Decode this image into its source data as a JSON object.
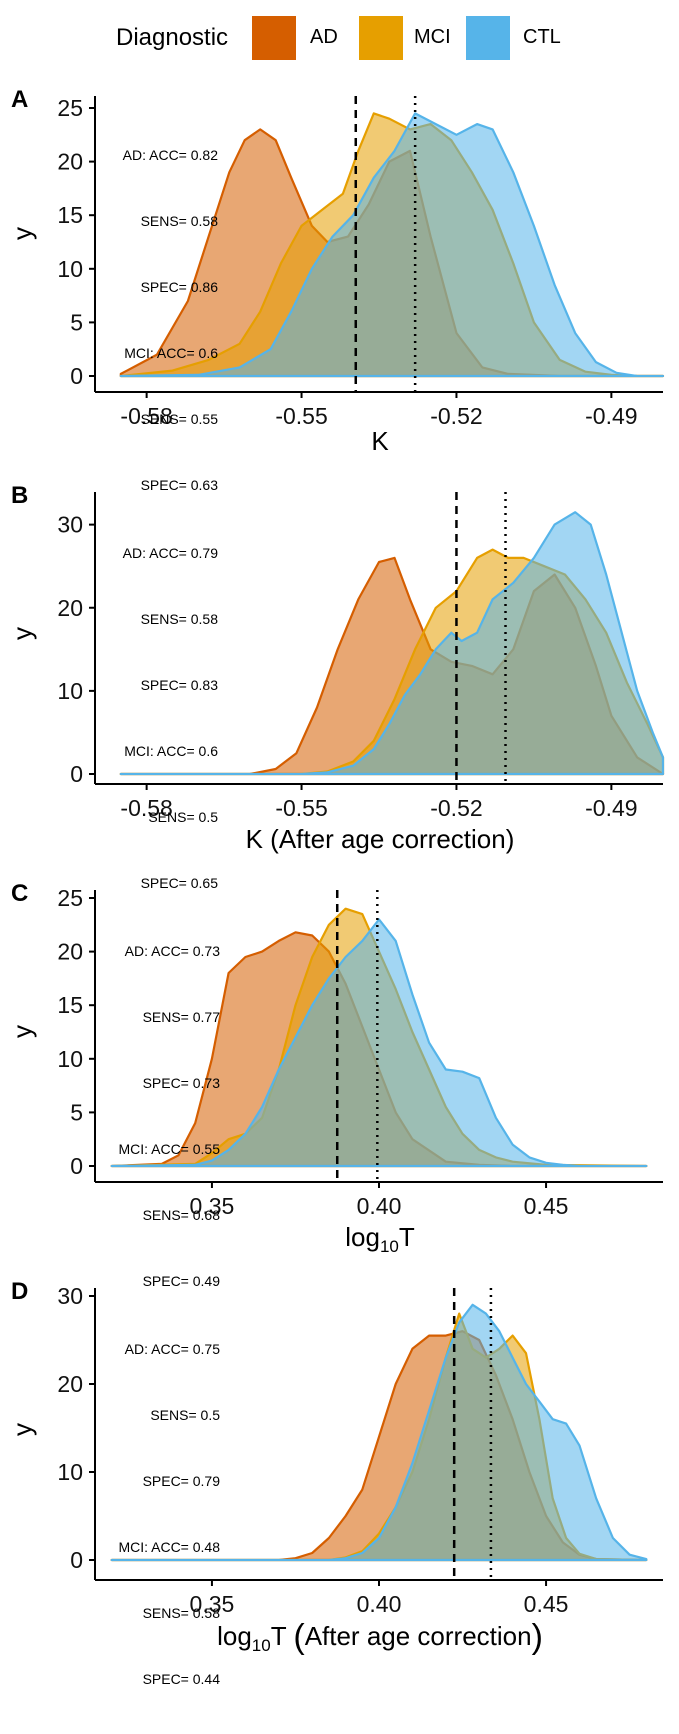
{
  "legend": {
    "title": "Diagnostic",
    "items": [
      {
        "label": "AD",
        "color": "#D55E00"
      },
      {
        "label": "MCI",
        "color": "#E69F00"
      },
      {
        "label": "CTL",
        "color": "#56B4E9"
      }
    ]
  },
  "chart_data": [
    {
      "panel": "A",
      "type": "area",
      "xlabel": "K",
      "ylabel": "y",
      "xlim": [
        -0.59,
        -0.48
      ],
      "ylim": [
        0,
        25
      ],
      "x_ticks": [
        "-0.58",
        "-0.55",
        "-0.52",
        "-0.49"
      ],
      "y_ticks": [
        "0",
        "5",
        "10",
        "15",
        "20",
        "25"
      ],
      "stats": [
        "AD: ACC= 0.82",
        "SENS= 0.58",
        "SPEC= 0.86",
        "MCI: ACC= 0.6",
        "SENS= 0.55",
        "SPEC= 0.63"
      ],
      "thresholds": {
        "dashed": -0.5395,
        "dotted": -0.528
      },
      "series": [
        {
          "name": "AD",
          "x": [
            -0.585,
            -0.578,
            -0.572,
            -0.568,
            -0.564,
            -0.561,
            -0.558,
            -0.555,
            -0.552,
            -0.548,
            -0.545,
            -0.541,
            -0.537,
            -0.533,
            -0.529,
            -0.525,
            -0.52,
            -0.515,
            -0.51,
            -0.5,
            -0.49,
            -0.48
          ],
          "y": [
            0.2,
            2,
            7,
            13,
            19,
            22,
            23,
            22,
            18.5,
            14,
            12.5,
            13,
            16,
            20,
            21,
            13,
            4,
            0.8,
            0.2,
            0,
            0,
            0
          ]
        },
        {
          "name": "MCI",
          "x": [
            -0.585,
            -0.575,
            -0.568,
            -0.562,
            -0.558,
            -0.554,
            -0.55,
            -0.546,
            -0.542,
            -0.539,
            -0.536,
            -0.533,
            -0.529,
            -0.525,
            -0.521,
            -0.517,
            -0.513,
            -0.509,
            -0.505,
            -0.5,
            -0.495,
            -0.49,
            -0.485,
            -0.48
          ],
          "y": [
            0,
            0.5,
            1.5,
            3,
            6,
            10.5,
            14,
            15.5,
            17,
            21,
            24.5,
            24,
            23,
            23.5,
            22,
            19,
            15.5,
            10.5,
            5,
            1.5,
            0.4,
            0.1,
            0,
            0
          ]
        },
        {
          "name": "CTL",
          "x": [
            -0.585,
            -0.57,
            -0.562,
            -0.556,
            -0.552,
            -0.548,
            -0.544,
            -0.54,
            -0.536,
            -0.532,
            -0.528,
            -0.524,
            -0.52,
            -0.516,
            -0.513,
            -0.509,
            -0.505,
            -0.501,
            -0.497,
            -0.493,
            -0.489,
            -0.485,
            -0.48
          ],
          "y": [
            0,
            0.1,
            0.8,
            2.5,
            6,
            10,
            13,
            15,
            18.5,
            21,
            24.5,
            23.5,
            22.5,
            23.5,
            23,
            19,
            14,
            8.5,
            4,
            1.3,
            0.3,
            0,
            0
          ]
        }
      ]
    },
    {
      "panel": "B",
      "type": "area",
      "xlabel": "K (After age correction)",
      "ylabel": "y",
      "xlim": [
        -0.59,
        -0.48
      ],
      "ylim": [
        0,
        32
      ],
      "x_ticks": [
        "-0.58",
        "-0.55",
        "-0.52",
        "-0.49"
      ],
      "y_ticks": [
        "0",
        "10",
        "20",
        "30"
      ],
      "stats": [
        "AD: ACC= 0.79",
        "SENS= 0.58",
        "SPEC= 0.83",
        "MCI: ACC= 0.6",
        "SENS= 0.5",
        "SPEC= 0.65"
      ],
      "thresholds": {
        "dashed": -0.52,
        "dotted": -0.5105
      },
      "series": [
        {
          "name": "AD",
          "x": [
            -0.585,
            -0.56,
            -0.555,
            -0.551,
            -0.547,
            -0.543,
            -0.539,
            -0.535,
            -0.532,
            -0.529,
            -0.525,
            -0.521,
            -0.517,
            -0.513,
            -0.509,
            -0.505,
            -0.501,
            -0.497,
            -0.493,
            -0.49,
            -0.485,
            -0.48
          ],
          "y": [
            0,
            0,
            0.6,
            2.5,
            8,
            15,
            21,
            25.5,
            26,
            21,
            15,
            13.5,
            13,
            12,
            15,
            22,
            24,
            20,
            13,
            7,
            2,
            0
          ]
        },
        {
          "name": "MCI",
          "x": [
            -0.585,
            -0.55,
            -0.545,
            -0.54,
            -0.536,
            -0.532,
            -0.528,
            -0.524,
            -0.52,
            -0.516,
            -0.513,
            -0.51,
            -0.507,
            -0.503,
            -0.499,
            -0.495,
            -0.491,
            -0.487,
            -0.483,
            -0.48
          ],
          "y": [
            0,
            0,
            0.3,
            1.5,
            4,
            9,
            15,
            20,
            22,
            26,
            27,
            26,
            26,
            25,
            24,
            21,
            17,
            11,
            6,
            2
          ]
        },
        {
          "name": "CTL",
          "x": [
            -0.585,
            -0.55,
            -0.545,
            -0.54,
            -0.536,
            -0.533,
            -0.53,
            -0.527,
            -0.524,
            -0.521,
            -0.519,
            -0.516,
            -0.513,
            -0.509,
            -0.505,
            -0.501,
            -0.497,
            -0.494,
            -0.491,
            -0.488,
            -0.485,
            -0.482,
            -0.48
          ],
          "y": [
            0,
            0,
            0.2,
            1,
            3,
            6,
            9.5,
            12,
            15,
            17,
            16,
            17,
            21,
            23,
            26,
            30,
            31.5,
            30,
            24,
            17,
            10,
            5,
            2
          ]
        }
      ]
    },
    {
      "panel": "C",
      "type": "area",
      "xlabel": "log10T",
      "ylabel": "y",
      "xlim": [
        0.315,
        0.485
      ],
      "ylim": [
        0,
        25
      ],
      "x_ticks": [
        "0.35",
        "0.40",
        "0.45"
      ],
      "y_ticks": [
        "0",
        "5",
        "10",
        "15",
        "20",
        "25"
      ],
      "stats": [
        "AD: ACC= 0.73",
        "SENS= 0.77",
        "SPEC= 0.73",
        "MCI: ACC= 0.55",
        "SENS= 0.68",
        "SPEC= 0.49"
      ],
      "thresholds": {
        "dashed": 0.3875,
        "dotted": 0.3995
      },
      "series": [
        {
          "name": "AD",
          "x": [
            0.32,
            0.335,
            0.34,
            0.345,
            0.35,
            0.355,
            0.36,
            0.365,
            0.37,
            0.375,
            0.38,
            0.385,
            0.39,
            0.395,
            0.4,
            0.405,
            0.41,
            0.42,
            0.43,
            0.44,
            0.46,
            0.48
          ],
          "y": [
            0,
            0.2,
            1,
            4,
            10,
            18,
            19.5,
            20,
            21,
            21.8,
            21.5,
            20,
            17,
            13,
            9,
            5,
            2.5,
            0.4,
            0.1,
            0,
            0,
            0
          ]
        },
        {
          "name": "MCI",
          "x": [
            0.32,
            0.345,
            0.35,
            0.355,
            0.36,
            0.365,
            0.37,
            0.375,
            0.38,
            0.385,
            0.39,
            0.395,
            0.4,
            0.405,
            0.41,
            0.415,
            0.42,
            0.425,
            0.43,
            0.435,
            0.44,
            0.45,
            0.48
          ],
          "y": [
            0,
            0.2,
            1.2,
            2.5,
            3,
            4.5,
            9,
            15,
            19.5,
            22.5,
            24,
            23.5,
            20,
            16.5,
            12.5,
            9,
            5.5,
            3,
            1.5,
            0.8,
            0.4,
            0.1,
            0
          ]
        },
        {
          "name": "CTL",
          "x": [
            0.32,
            0.345,
            0.35,
            0.355,
            0.36,
            0.365,
            0.37,
            0.375,
            0.38,
            0.385,
            0.39,
            0.395,
            0.4,
            0.405,
            0.41,
            0.415,
            0.42,
            0.425,
            0.43,
            0.435,
            0.44,
            0.445,
            0.45,
            0.455,
            0.46,
            0.48
          ],
          "y": [
            0,
            0.1,
            0.5,
            1.5,
            3,
            5.5,
            9,
            12,
            15,
            17.5,
            19.5,
            21,
            23,
            21,
            16,
            11.5,
            9,
            8.8,
            8.2,
            4.5,
            2,
            0.8,
            0.3,
            0.1,
            0,
            0
          ]
        }
      ]
    },
    {
      "panel": "D",
      "type": "area",
      "xlabel": "log10T (After age correction)",
      "ylabel": "y",
      "xlim": [
        0.315,
        0.485
      ],
      "ylim": [
        0,
        30
      ],
      "x_ticks": [
        "0.35",
        "0.40",
        "0.45"
      ],
      "y_ticks": [
        "0",
        "10",
        "20",
        "30"
      ],
      "stats": [
        "AD: ACC= 0.75",
        "SENS= 0.5",
        "SPEC= 0.79",
        "MCI: ACC= 0.48",
        "SENS= 0.58",
        "SPEC= 0.44"
      ],
      "thresholds": {
        "dashed": 0.4225,
        "dotted": 0.4335
      },
      "series": [
        {
          "name": "AD",
          "x": [
            0.32,
            0.37,
            0.375,
            0.38,
            0.385,
            0.39,
            0.395,
            0.4,
            0.405,
            0.41,
            0.415,
            0.42,
            0.425,
            0.43,
            0.435,
            0.44,
            0.445,
            0.45,
            0.455,
            0.46,
            0.465,
            0.48
          ],
          "y": [
            0,
            0,
            0.2,
            0.8,
            2.5,
            5,
            8,
            14,
            20,
            24,
            25.5,
            25.5,
            26,
            25,
            21,
            16,
            10,
            5,
            2,
            0.6,
            0.1,
            0
          ]
        },
        {
          "name": "MCI",
          "x": [
            0.32,
            0.385,
            0.39,
            0.395,
            0.4,
            0.405,
            0.41,
            0.415,
            0.42,
            0.424,
            0.428,
            0.432,
            0.436,
            0.44,
            0.444,
            0.448,
            0.452,
            0.456,
            0.46,
            0.465,
            0.48
          ],
          "y": [
            0,
            0,
            0.3,
            1,
            3,
            6,
            10,
            16,
            23,
            28,
            24,
            23,
            24,
            25.5,
            23.5,
            16,
            7,
            2.5,
            0.7,
            0.1,
            0
          ]
        },
        {
          "name": "CTL",
          "x": [
            0.32,
            0.385,
            0.39,
            0.395,
            0.4,
            0.405,
            0.41,
            0.415,
            0.42,
            0.424,
            0.428,
            0.432,
            0.436,
            0.44,
            0.444,
            0.448,
            0.452,
            0.456,
            0.46,
            0.465,
            0.47,
            0.475,
            0.48
          ],
          "y": [
            0,
            0,
            0.2,
            0.8,
            2.5,
            6,
            11,
            17,
            23,
            27,
            29,
            28,
            26,
            23,
            20,
            18,
            16,
            15.5,
            13,
            7,
            2.5,
            0.6,
            0.1
          ]
        }
      ]
    }
  ]
}
